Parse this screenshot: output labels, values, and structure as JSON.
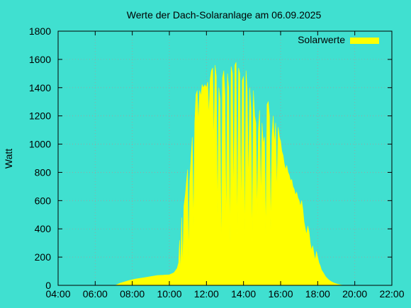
{
  "colors": {
    "background": "#40E0D0",
    "series": "#FFFF00",
    "grid": "#A0A0A0",
    "axis": "#000000"
  },
  "chart_data": {
    "type": "area",
    "title": "Werte der Dach-Solaranlage am 06.09.2025",
    "xlabel": "",
    "ylabel": "Watt",
    "xlim": [
      "04:00",
      "22:00"
    ],
    "ylim": [
      0,
      1800
    ],
    "grid": true,
    "legend_position": "top-right",
    "x_ticks": [
      "04:00",
      "06:00",
      "08:00",
      "10:00",
      "12:00",
      "14:00",
      "16:00",
      "18:00",
      "20:00",
      "22:00"
    ],
    "y_ticks": [
      0,
      200,
      400,
      600,
      800,
      1000,
      1200,
      1400,
      1600,
      1800
    ],
    "series": [
      {
        "name": "Solarwerte",
        "points": [
          [
            "07:05",
            0
          ],
          [
            "07:20",
            15
          ],
          [
            "07:35",
            25
          ],
          [
            "07:50",
            35
          ],
          [
            "08:10",
            45
          ],
          [
            "08:40",
            55
          ],
          [
            "09:00",
            62
          ],
          [
            "09:20",
            70
          ],
          [
            "09:40",
            72
          ],
          [
            "10:00",
            75
          ],
          [
            "10:15",
            90
          ],
          [
            "10:25",
            120
          ],
          [
            "10:30",
            160
          ],
          [
            "10:33",
            320
          ],
          [
            "10:36",
            90
          ],
          [
            "10:40",
            480
          ],
          [
            "10:43",
            120
          ],
          [
            "10:47",
            560
          ],
          [
            "10:52",
            650
          ],
          [
            "10:56",
            750
          ],
          [
            "10:59",
            820
          ],
          [
            "11:02",
            200
          ],
          [
            "11:06",
            740
          ],
          [
            "11:10",
            900
          ],
          [
            "11:14",
            1050
          ],
          [
            "11:18",
            420
          ],
          [
            "11:22",
            1150
          ],
          [
            "11:26",
            1350
          ],
          [
            "11:30",
            1380
          ],
          [
            "11:34",
            1150
          ],
          [
            "11:38",
            1380
          ],
          [
            "11:42",
            1340
          ],
          [
            "11:46",
            1420
          ],
          [
            "11:50",
            1400
          ],
          [
            "11:55",
            1420
          ],
          [
            "12:00",
            1400
          ],
          [
            "12:04",
            1440
          ],
          [
            "12:08",
            1200
          ],
          [
            "12:12",
            1460
          ],
          [
            "12:16",
            1520
          ],
          [
            "12:20",
            1540
          ],
          [
            "12:24",
            1000
          ],
          [
            "12:28",
            1560
          ],
          [
            "12:32",
            1480
          ],
          [
            "12:36",
            500
          ],
          [
            "12:40",
            1400
          ],
          [
            "12:44",
            1320
          ],
          [
            "12:48",
            200
          ],
          [
            "12:52",
            1470
          ],
          [
            "12:56",
            1520
          ],
          [
            "13:00",
            1350
          ],
          [
            "13:04",
            400
          ],
          [
            "13:08",
            1500
          ],
          [
            "13:12",
            1400
          ],
          [
            "13:16",
            300
          ],
          [
            "13:20",
            1550
          ],
          [
            "13:24",
            1500
          ],
          [
            "13:28",
            600
          ],
          [
            "13:32",
            1560
          ],
          [
            "13:36",
            1580
          ],
          [
            "13:40",
            350
          ],
          [
            "13:44",
            1540
          ],
          [
            "13:48",
            1500
          ],
          [
            "13:52",
            500
          ],
          [
            "13:56",
            1450
          ],
          [
            "14:00",
            1480
          ],
          [
            "14:04",
            300
          ],
          [
            "14:08",
            1520
          ],
          [
            "14:12",
            1380
          ],
          [
            "14:16",
            700
          ],
          [
            "14:20",
            1400
          ],
          [
            "14:24",
            1250
          ],
          [
            "14:28",
            300
          ],
          [
            "14:32",
            1380
          ],
          [
            "14:36",
            1200
          ],
          [
            "14:40",
            1150
          ],
          [
            "14:44",
            500
          ],
          [
            "14:48",
            1100
          ],
          [
            "14:52",
            1240
          ],
          [
            "14:56",
            600
          ],
          [
            "15:00",
            1150
          ],
          [
            "15:04",
            1000
          ],
          [
            "15:08",
            1050
          ],
          [
            "15:12",
            350
          ],
          [
            "15:16",
            1280
          ],
          [
            "15:20",
            1300
          ],
          [
            "15:24",
            1200
          ],
          [
            "15:28",
            400
          ],
          [
            "15:32",
            1050
          ],
          [
            "15:36",
            1200
          ],
          [
            "15:40",
            1000
          ],
          [
            "15:44",
            1150
          ],
          [
            "15:48",
            650
          ],
          [
            "15:52",
            1120
          ],
          [
            "15:56",
            1050
          ],
          [
            "16:00",
            1020
          ],
          [
            "16:04",
            950
          ],
          [
            "16:08",
            920
          ],
          [
            "16:12",
            860
          ],
          [
            "16:16",
            820
          ],
          [
            "16:20",
            850
          ],
          [
            "16:24",
            800
          ],
          [
            "16:28",
            780
          ],
          [
            "16:32",
            740
          ],
          [
            "16:36",
            750
          ],
          [
            "16:40",
            700
          ],
          [
            "16:44",
            680
          ],
          [
            "16:48",
            640
          ],
          [
            "16:52",
            660
          ],
          [
            "16:56",
            620
          ],
          [
            "17:00",
            600
          ],
          [
            "17:04",
            560
          ],
          [
            "17:08",
            600
          ],
          [
            "17:12",
            540
          ],
          [
            "17:16",
            450
          ],
          [
            "17:20",
            400
          ],
          [
            "17:24",
            360
          ],
          [
            "17:28",
            420
          ],
          [
            "17:32",
            380
          ],
          [
            "17:36",
            300
          ],
          [
            "17:40",
            250
          ],
          [
            "17:44",
            280
          ],
          [
            "17:48",
            220
          ],
          [
            "17:52",
            180
          ],
          [
            "17:56",
            240
          ],
          [
            "18:00",
            200
          ],
          [
            "18:04",
            160
          ],
          [
            "18:08",
            140
          ],
          [
            "18:12",
            110
          ],
          [
            "18:18",
            90
          ],
          [
            "18:26",
            60
          ],
          [
            "18:35",
            40
          ],
          [
            "18:45",
            25
          ],
          [
            "18:55",
            15
          ],
          [
            "19:05",
            8
          ],
          [
            "19:15",
            3
          ],
          [
            "19:25",
            0
          ]
        ]
      }
    ]
  }
}
